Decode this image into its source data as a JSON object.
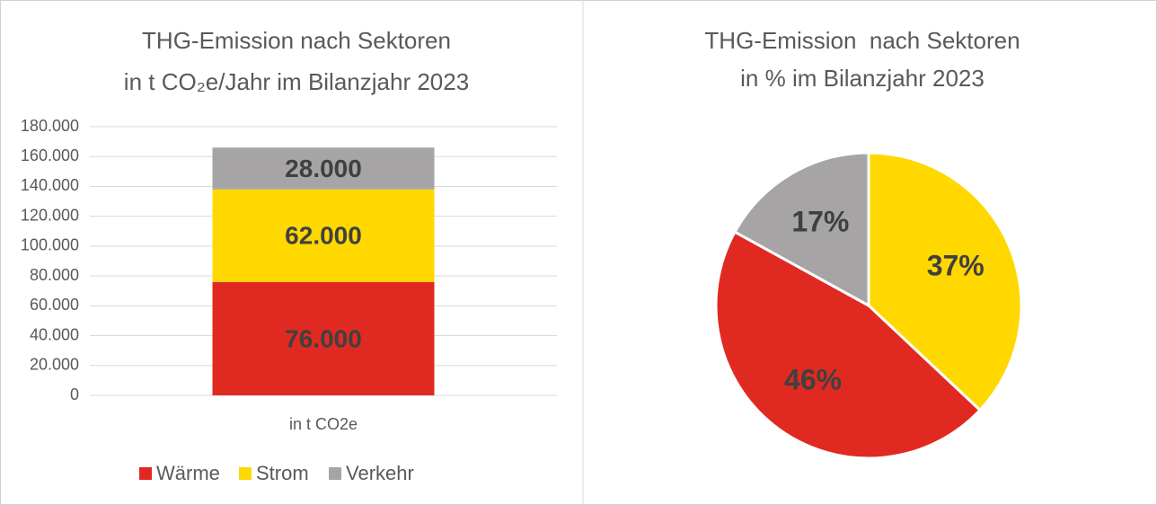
{
  "chart_data": [
    {
      "type": "stacked_bar",
      "title": [
        "THG-Emission nach Sektoren",
        "in t CO₂e/Jahr im Bilanzjahr 2023"
      ],
      "categories": [
        "in t CO2e"
      ],
      "series": [
        {
          "name": "Wärme",
          "color": "#e02a21",
          "values": [
            76000
          ],
          "value_labels": [
            "76.000"
          ]
        },
        {
          "name": "Strom",
          "color": "#ffd800",
          "values": [
            62000
          ],
          "value_labels": [
            "62.000"
          ]
        },
        {
          "name": "Verkehr",
          "color": "#a6a4a4",
          "values": [
            28000
          ],
          "value_labels": [
            "28.000"
          ]
        }
      ],
      "ylim": [
        0,
        180000
      ],
      "yticks": [
        0,
        {
          "value": 20000,
          "label": "20.000"
        },
        {
          "value": 40000,
          "label": "40.000"
        },
        {
          "value": 60000,
          "label": "60.000"
        },
        {
          "value": 80000,
          "label": "80.000"
        },
        {
          "value": 100000,
          "label": "100.000"
        },
        {
          "value": 120000,
          "label": "120.000"
        },
        {
          "value": 140000,
          "label": "140.000"
        },
        {
          "value": 160000,
          "label": "160.000"
        },
        {
          "value": 180000,
          "label": "180.000"
        }
      ],
      "grid": true,
      "legend": "bottom"
    },
    {
      "type": "pie",
      "title": [
        "THG-Emission  nach Sektoren",
        "in % im Bilanzjahr 2023"
      ],
      "values": [
        37,
        46,
        17
      ],
      "value_labels": [
        "37%",
        "46%",
        "17%"
      ],
      "colors": [
        "#ffd800",
        "#e02a21",
        "#a6a4a4"
      ]
    }
  ]
}
